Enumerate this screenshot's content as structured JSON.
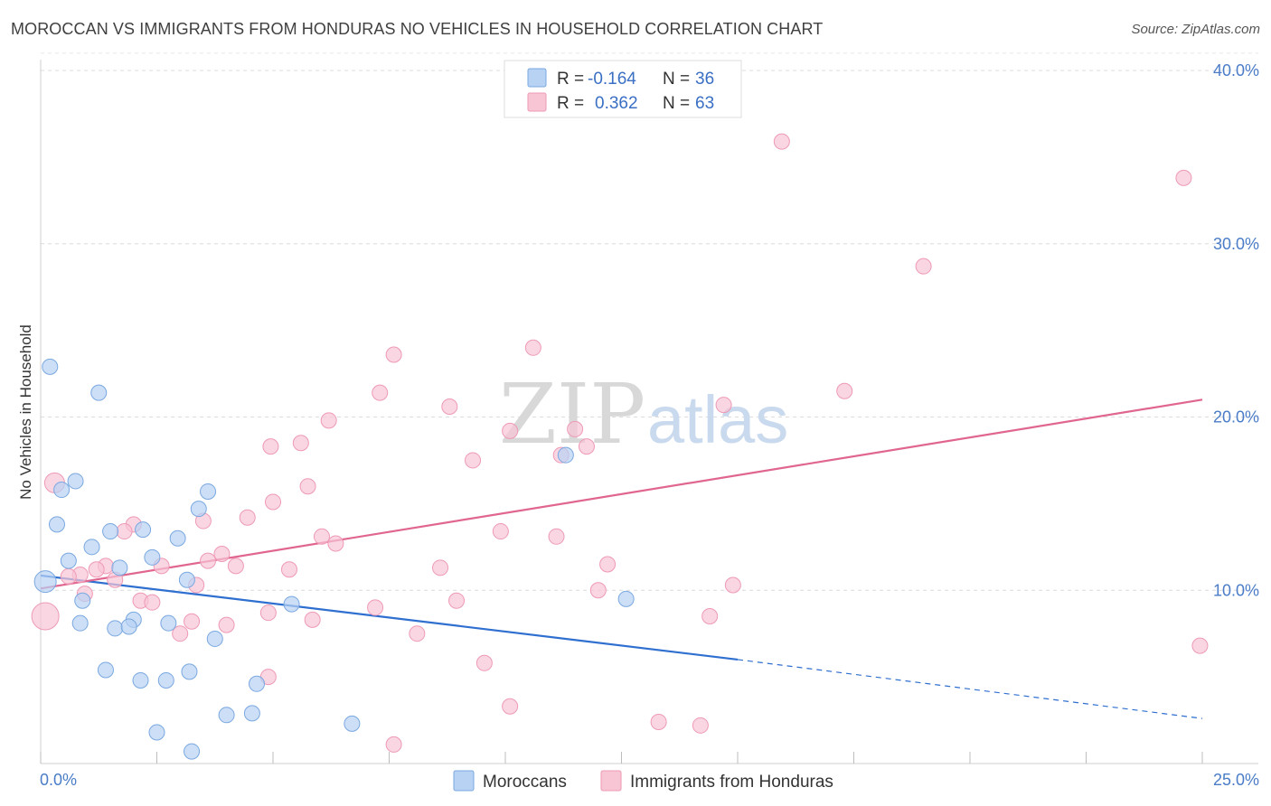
{
  "header": {
    "title": "MOROCCAN VS IMMIGRANTS FROM HONDURAS NO VEHICLES IN HOUSEHOLD CORRELATION CHART",
    "source": "Source: ZipAtlas.com"
  },
  "watermark": {
    "zip": "ZIP",
    "atlas": "atlas"
  },
  "legend": {
    "rows": [
      {
        "r_label": "R =",
        "r_value": "-0.164",
        "n_label": "N =",
        "n_value": "36"
      },
      {
        "r_label": "R =",
        "r_value": "0.362",
        "n_label": "N =",
        "n_value": "63"
      }
    ]
  },
  "bottom_legend": {
    "moroccans": "Moroccans",
    "honduras": "Immigrants from Honduras"
  },
  "colors": {
    "moroccans_fill": "#b7d2f3",
    "moroccans_stroke": "#7aa8e0",
    "moroccans_line": "#2f6fd0",
    "honduras_fill": "#f8c5d5",
    "honduras_stroke": "#ee9ab5",
    "honduras_line": "#e0668f",
    "tick_text": "#4a7cc7"
  },
  "chart_data": {
    "type": "scatter",
    "title": "MOROCCAN VS IMMIGRANTS FROM HONDURAS NO VEHICLES IN HOUSEHOLD CORRELATION CHART",
    "xlabel": "",
    "ylabel": "No Vehicles in Household",
    "xlim": [
      0,
      25
    ],
    "ylim": [
      0,
      40
    ],
    "x_tick_labels": [
      "0.0%",
      "25.0%"
    ],
    "y_tick_labels": [
      "10.0%",
      "20.0%",
      "30.0%",
      "40.0%"
    ],
    "y_ticks": [
      10,
      20,
      30,
      40
    ],
    "grid": true,
    "legend_position": "top-center",
    "series": [
      {
        "name": "Moroccans",
        "r": -0.164,
        "n": 36,
        "points": [
          [
            0.2,
            22.9
          ],
          [
            1.25,
            21.4
          ],
          [
            0.75,
            16.3
          ],
          [
            0.45,
            15.8
          ],
          [
            3.6,
            15.7
          ],
          [
            3.4,
            14.7
          ],
          [
            0.35,
            13.8
          ],
          [
            1.5,
            13.4
          ],
          [
            2.2,
            13.5
          ],
          [
            2.95,
            13.0
          ],
          [
            1.1,
            12.5
          ],
          [
            0.6,
            11.7
          ],
          [
            2.4,
            11.9
          ],
          [
            1.7,
            11.3
          ],
          [
            3.15,
            10.6
          ],
          [
            0.1,
            10.5
          ],
          [
            0.9,
            9.4
          ],
          [
            5.4,
            9.2
          ],
          [
            12.6,
            9.5
          ],
          [
            2.0,
            8.3
          ],
          [
            0.85,
            8.1
          ],
          [
            2.75,
            8.1
          ],
          [
            1.6,
            7.8
          ],
          [
            1.9,
            7.9
          ],
          [
            3.75,
            7.2
          ],
          [
            1.4,
            5.4
          ],
          [
            3.2,
            5.3
          ],
          [
            2.15,
            4.8
          ],
          [
            2.7,
            4.8
          ],
          [
            4.65,
            4.6
          ],
          [
            4.0,
            2.8
          ],
          [
            4.55,
            2.9
          ],
          [
            6.7,
            2.3
          ],
          [
            2.5,
            1.8
          ],
          [
            3.25,
            0.7
          ],
          [
            11.3,
            17.8
          ]
        ]
      },
      {
        "name": "Immigrants from Honduras",
        "r": 0.362,
        "n": 63,
        "points": [
          [
            15.95,
            35.9
          ],
          [
            24.6,
            33.8
          ],
          [
            19.0,
            28.7
          ],
          [
            10.6,
            24.0
          ],
          [
            7.6,
            23.6
          ],
          [
            7.3,
            21.4
          ],
          [
            17.3,
            21.5
          ],
          [
            14.7,
            20.7
          ],
          [
            8.8,
            20.6
          ],
          [
            6.2,
            19.8
          ],
          [
            10.1,
            19.2
          ],
          [
            11.5,
            19.3
          ],
          [
            5.6,
            18.5
          ],
          [
            4.95,
            18.3
          ],
          [
            11.75,
            18.3
          ],
          [
            11.2,
            17.8
          ],
          [
            9.3,
            17.5
          ],
          [
            0.3,
            16.2
          ],
          [
            5.75,
            16.0
          ],
          [
            5.0,
            15.1
          ],
          [
            4.45,
            14.2
          ],
          [
            3.5,
            14.0
          ],
          [
            2.0,
            13.8
          ],
          [
            1.8,
            13.4
          ],
          [
            9.9,
            13.4
          ],
          [
            11.1,
            13.1
          ],
          [
            6.05,
            13.1
          ],
          [
            6.35,
            12.7
          ],
          [
            3.9,
            12.1
          ],
          [
            3.6,
            11.7
          ],
          [
            1.4,
            11.4
          ],
          [
            2.6,
            11.4
          ],
          [
            4.2,
            11.4
          ],
          [
            12.2,
            11.5
          ],
          [
            8.6,
            11.3
          ],
          [
            5.35,
            11.2
          ],
          [
            1.2,
            11.2
          ],
          [
            0.85,
            10.9
          ],
          [
            0.6,
            10.8
          ],
          [
            1.6,
            10.6
          ],
          [
            3.35,
            10.3
          ],
          [
            14.9,
            10.3
          ],
          [
            12.0,
            10.0
          ],
          [
            0.95,
            9.8
          ],
          [
            2.15,
            9.4
          ],
          [
            2.4,
            9.3
          ],
          [
            8.95,
            9.4
          ],
          [
            7.2,
            9.0
          ],
          [
            4.9,
            8.7
          ],
          [
            5.85,
            8.3
          ],
          [
            3.25,
            8.2
          ],
          [
            14.4,
            8.5
          ],
          [
            4.0,
            8.0
          ],
          [
            3.0,
            7.5
          ],
          [
            8.1,
            7.5
          ],
          [
            24.95,
            6.8
          ],
          [
            9.55,
            5.8
          ],
          [
            4.9,
            5.0
          ],
          [
            10.1,
            3.3
          ],
          [
            13.3,
            2.4
          ],
          [
            14.2,
            2.2
          ],
          [
            7.6,
            1.1
          ],
          [
            0.1,
            8.5
          ]
        ]
      }
    ],
    "trendlines": [
      {
        "series": "Moroccans",
        "solid": [
          [
            0,
            10.85
          ],
          [
            15.0,
            6.0
          ]
        ],
        "dashed": [
          [
            15.0,
            6.0
          ],
          [
            25.0,
            2.6
          ]
        ]
      },
      {
        "series": "Immigrants from Honduras",
        "solid": [
          [
            0,
            10.1
          ],
          [
            25.0,
            21.0
          ]
        ]
      }
    ]
  }
}
